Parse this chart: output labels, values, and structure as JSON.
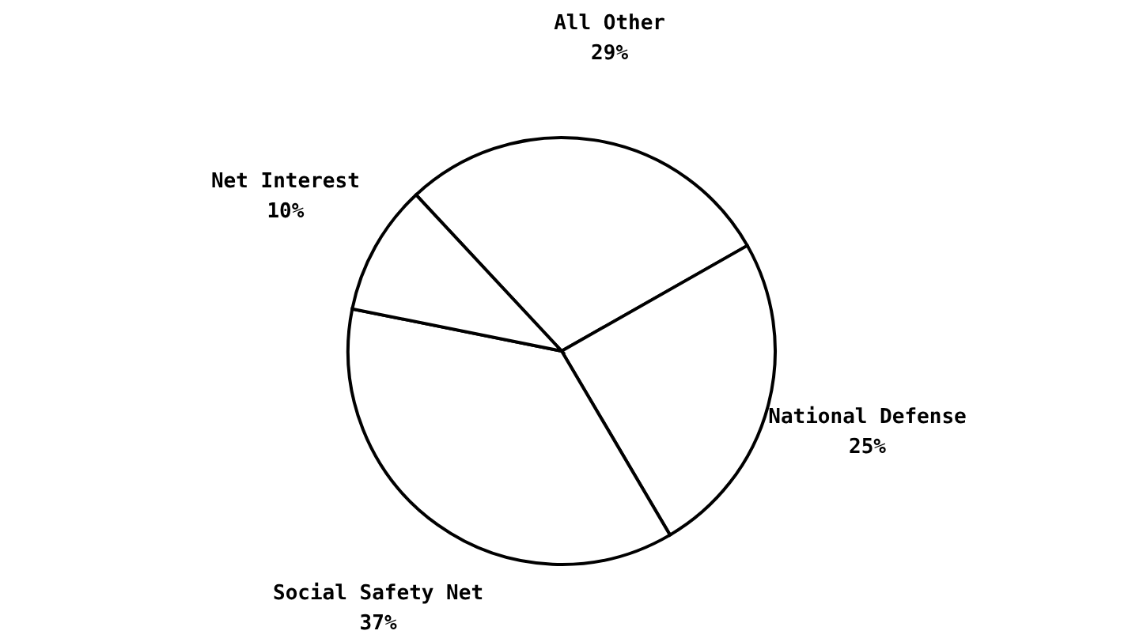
{
  "chart_data": {
    "type": "pie",
    "categories": [
      "All Other",
      "National Defense",
      "Social Safety Net",
      "Net Interest"
    ],
    "values": [
      29,
      25,
      37,
      10
    ],
    "colors": [
      "#ffffff",
      "#ffffff",
      "#ffffff",
      "#ffffff"
    ],
    "value_labels": [
      "29%",
      "25%",
      "37%",
      "10%"
    ]
  }
}
